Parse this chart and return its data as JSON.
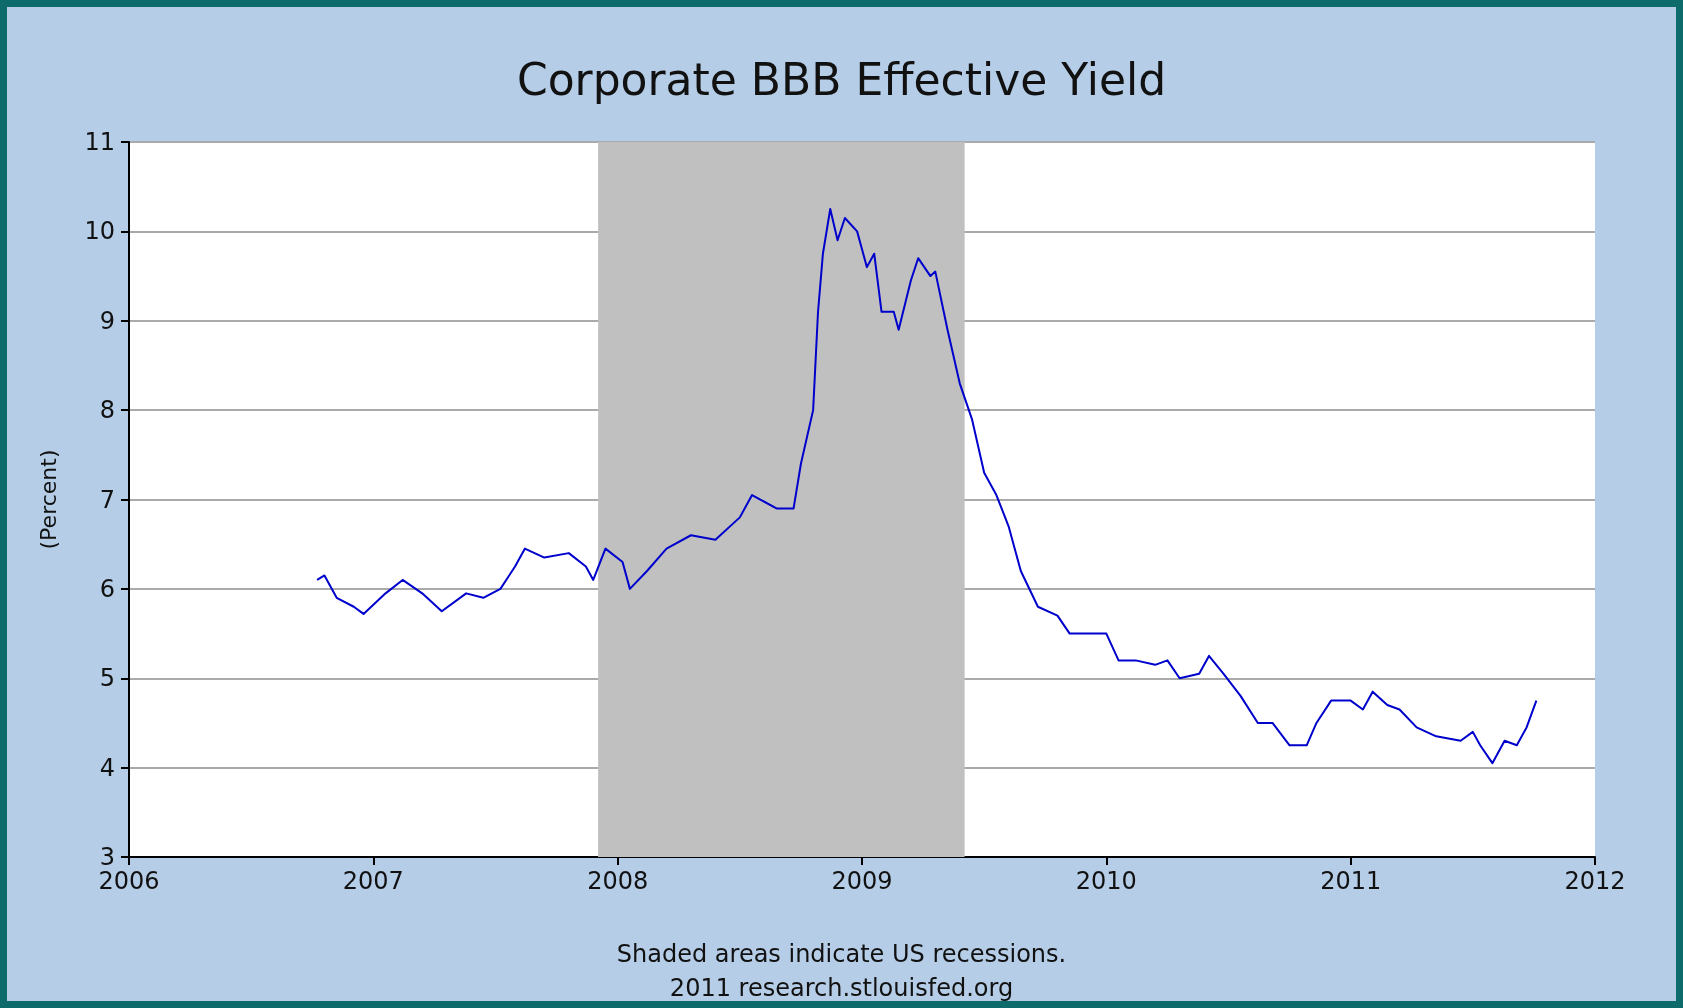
{
  "chart_data": {
    "type": "line",
    "title": "Corporate BBB Effective Yield",
    "ylabel": "(Percent)",
    "annotations": [
      "Shaded areas indicate US recessions.",
      "2011 research.stlouisfed.org"
    ],
    "xlim": [
      2006,
      2012
    ],
    "xticks": [
      2006,
      2007,
      2008,
      2009,
      2010,
      2011,
      2012
    ],
    "ylim": [
      3,
      11
    ],
    "yticks": [
      3,
      4,
      5,
      6,
      7,
      8,
      9,
      10,
      11
    ],
    "grid": "y",
    "marker": "none",
    "line_style": "solid",
    "bands": [
      {
        "axis": "x",
        "from": 2007.92,
        "to": 2009.42,
        "label": null,
        "color": "#c0c0c0"
      }
    ],
    "series": [
      {
        "color": "#0000cc",
        "x": [
          2006.77,
          2006.8,
          2006.85,
          2006.92,
          2006.96,
          2007.05,
          2007.12,
          2007.2,
          2007.28,
          2007.38,
          2007.45,
          2007.52,
          2007.58,
          2007.62,
          2007.7,
          2007.8,
          2007.87,
          2007.9,
          2007.95,
          2008.02,
          2008.05,
          2008.12,
          2008.2,
          2008.3,
          2008.4,
          2008.5,
          2008.55,
          2008.65,
          2008.72,
          2008.75,
          2008.8,
          2008.82,
          2008.84,
          2008.87,
          2008.9,
          2008.93,
          2008.98,
          2009.02,
          2009.05,
          2009.08,
          2009.13,
          2009.15,
          2009.2,
          2009.23,
          2009.28,
          2009.3,
          2009.35,
          2009.4,
          2009.45,
          2009.5,
          2009.55,
          2009.6,
          2009.65,
          2009.72,
          2009.8,
          2009.85,
          2009.92,
          2010.0,
          2010.05,
          2010.12,
          2010.2,
          2010.25,
          2010.3,
          2010.38,
          2010.42,
          2010.48,
          2010.55,
          2010.62,
          2010.68,
          2010.75,
          2010.82,
          2010.86,
          2010.92,
          2011.0,
          2011.05,
          2011.09,
          2011.15,
          2011.2,
          2011.27,
          2011.35,
          2011.45,
          2011.5,
          2011.53,
          2011.58,
          2011.63,
          2011.68,
          2011.72,
          2011.76
        ],
        "values": [
          6.1,
          6.15,
          5.9,
          5.8,
          5.72,
          5.95,
          6.1,
          5.95,
          5.75,
          5.95,
          5.9,
          6.0,
          6.25,
          6.45,
          6.35,
          6.4,
          6.25,
          6.1,
          6.45,
          6.3,
          6.0,
          6.2,
          6.45,
          6.6,
          6.55,
          6.8,
          7.05,
          6.9,
          6.9,
          7.4,
          8.0,
          9.1,
          9.75,
          10.25,
          9.9,
          10.15,
          10.0,
          9.6,
          9.75,
          9.1,
          9.1,
          8.9,
          9.45,
          9.7,
          9.5,
          9.55,
          8.9,
          8.3,
          7.9,
          7.3,
          7.05,
          6.7,
          6.2,
          5.8,
          5.7,
          5.5,
          5.5,
          5.5,
          5.2,
          5.2,
          5.15,
          5.2,
          5.0,
          5.05,
          5.25,
          5.05,
          4.8,
          4.5,
          4.5,
          4.25,
          4.25,
          4.5,
          4.75,
          4.75,
          4.65,
          4.85,
          4.7,
          4.65,
          4.45,
          4.35,
          4.3,
          4.4,
          4.25,
          4.05,
          4.3,
          4.25,
          4.45,
          4.75
        ]
      }
    ]
  }
}
